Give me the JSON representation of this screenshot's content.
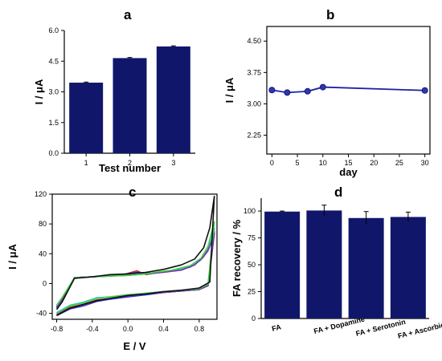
{
  "chart_data": [
    {
      "panel": "a",
      "type": "bar",
      "categories": [
        "1",
        "2",
        "3"
      ],
      "values": [
        3.45,
        4.65,
        5.22
      ],
      "errors": [
        0.03,
        0.03,
        0.03
      ],
      "xlabel": "Test number",
      "ylabel": "I / μA",
      "ylim": [
        0,
        6
      ],
      "yticks": [
        "0.0",
        "1.5",
        "3.0",
        "4.5",
        "6.0"
      ],
      "bar_color": "#10176b"
    },
    {
      "panel": "b",
      "type": "line",
      "x": [
        0,
        3,
        7,
        10,
        30
      ],
      "y": [
        3.33,
        3.27,
        3.3,
        3.4,
        3.32
      ],
      "xlabel": "day",
      "ylabel": "I / μA",
      "xlim": [
        -1,
        31
      ],
      "ylim": [
        1.8,
        4.85
      ],
      "xticks": [
        "0",
        "5",
        "10",
        "15",
        "20",
        "25",
        "30"
      ],
      "yticks": [
        "2.25",
        "3.00",
        "3.75",
        "4.50"
      ],
      "line_color": "#1c22a6",
      "marker_color": "#2f35b4"
    },
    {
      "panel": "c",
      "type": "line",
      "xlabel": "E / V",
      "ylabel": "I / μA",
      "xlim": [
        -0.85,
        1.0
      ],
      "ylim": [
        -48,
        120
      ],
      "xticks": [
        "-0.8",
        "-0.4",
        "0.0",
        "0.4",
        "0.8"
      ],
      "yticks": [
        "-40",
        "0",
        "40",
        "80",
        "120"
      ],
      "series": [
        {
          "color": "#c02626",
          "forward": [
            [
              -0.8,
              -31
            ],
            [
              -0.74,
              -21
            ],
            [
              -0.6,
              8
            ],
            [
              -0.4,
              9
            ],
            [
              -0.2,
              11
            ],
            [
              -0.05,
              12
            ],
            [
              0.1,
              17
            ],
            [
              0.2,
              12
            ],
            [
              0.3,
              14
            ],
            [
              0.5,
              17
            ],
            [
              0.7,
              22
            ],
            [
              0.82,
              32
            ],
            [
              0.9,
              45
            ],
            [
              0.97,
              70
            ]
          ],
          "reverse": [
            [
              0.97,
              70
            ],
            [
              0.9,
              -2
            ],
            [
              0.8,
              -8
            ],
            [
              0.6,
              -10
            ],
            [
              0.4,
              -12
            ],
            [
              0.2,
              -15
            ],
            [
              0.0,
              -17
            ],
            [
              -0.2,
              -20
            ],
            [
              -0.35,
              -22
            ],
            [
              -0.5,
              -28
            ],
            [
              -0.65,
              -32
            ],
            [
              -0.8,
              -41
            ]
          ]
        },
        {
          "color": "#2a2fd8",
          "forward": [
            [
              -0.8,
              -32
            ],
            [
              -0.74,
              -22
            ],
            [
              -0.6,
              8
            ],
            [
              -0.4,
              9
            ],
            [
              -0.2,
              11
            ],
            [
              -0.05,
              12
            ],
            [
              0.1,
              15
            ],
            [
              0.3,
              14
            ],
            [
              0.5,
              17
            ],
            [
              0.7,
              22
            ],
            [
              0.82,
              32
            ],
            [
              0.9,
              44
            ],
            [
              0.97,
              68
            ]
          ],
          "reverse": [
            [
              0.97,
              68
            ],
            [
              0.9,
              -3
            ],
            [
              0.8,
              -8
            ],
            [
              0.6,
              -10
            ],
            [
              0.4,
              -12
            ],
            [
              0.2,
              -15
            ],
            [
              0.0,
              -18
            ],
            [
              -0.2,
              -21
            ],
            [
              -0.35,
              -24
            ],
            [
              -0.5,
              -30
            ],
            [
              -0.65,
              -34
            ],
            [
              -0.8,
              -43
            ]
          ]
        },
        {
          "color": "#33c4d6",
          "forward": [
            [
              -0.8,
              -30
            ],
            [
              -0.74,
              -20
            ],
            [
              -0.6,
              8
            ],
            [
              -0.4,
              9
            ],
            [
              -0.2,
              10
            ],
            [
              0.0,
              11
            ],
            [
              0.2,
              13
            ],
            [
              0.3,
              14
            ],
            [
              0.5,
              17
            ],
            [
              0.7,
              22
            ],
            [
              0.82,
              32
            ],
            [
              0.9,
              45
            ],
            [
              0.97,
              74
            ]
          ],
          "reverse": [
            [
              0.97,
              74
            ],
            [
              0.9,
              -1
            ],
            [
              0.8,
              -7
            ],
            [
              0.6,
              -9
            ],
            [
              0.4,
              -11
            ],
            [
              0.2,
              -13
            ],
            [
              0.0,
              -15
            ],
            [
              -0.2,
              -18
            ],
            [
              -0.35,
              -19
            ],
            [
              -0.5,
              -25
            ],
            [
              -0.65,
              -29
            ],
            [
              -0.8,
              -39
            ]
          ]
        },
        {
          "color": "#7a2fb0",
          "forward": [
            [
              -0.8,
              -33
            ],
            [
              -0.74,
              -22
            ],
            [
              -0.6,
              8
            ],
            [
              -0.4,
              9
            ],
            [
              -0.2,
              10
            ],
            [
              0.0,
              11
            ],
            [
              0.2,
              13
            ],
            [
              0.4,
              15
            ],
            [
              0.6,
              18
            ],
            [
              0.75,
              25
            ],
            [
              0.85,
              36
            ],
            [
              0.92,
              50
            ],
            [
              0.97,
              67
            ]
          ],
          "reverse": [
            [
              0.97,
              67
            ],
            [
              0.9,
              -3
            ],
            [
              0.8,
              -8
            ],
            [
              0.6,
              -10
            ],
            [
              0.4,
              -12
            ],
            [
              0.2,
              -14
            ],
            [
              0.0,
              -17
            ],
            [
              -0.2,
              -20
            ],
            [
              -0.35,
              -23
            ],
            [
              -0.5,
              -29
            ],
            [
              -0.65,
              -33
            ],
            [
              -0.8,
              -42
            ]
          ]
        },
        {
          "color": "#3ed03e",
          "forward": [
            [
              -0.8,
              -29
            ],
            [
              -0.74,
              -19
            ],
            [
              -0.6,
              8
            ],
            [
              -0.4,
              9
            ],
            [
              -0.2,
              10
            ],
            [
              0.0,
              11
            ],
            [
              0.2,
              13
            ],
            [
              0.3,
              15
            ],
            [
              0.5,
              18
            ],
            [
              0.7,
              24
            ],
            [
              0.82,
              34
            ],
            [
              0.9,
              50
            ],
            [
              0.97,
              83
            ]
          ],
          "reverse": [
            [
              0.97,
              83
            ],
            [
              0.9,
              -1
            ],
            [
              0.8,
              -7
            ],
            [
              0.6,
              -9
            ],
            [
              0.4,
              -11
            ],
            [
              0.2,
              -13
            ],
            [
              0.0,
              -15
            ],
            [
              -0.2,
              -18
            ],
            [
              -0.35,
              -20
            ],
            [
              -0.5,
              -26
            ],
            [
              -0.65,
              -30
            ],
            [
              -0.8,
              -40
            ]
          ]
        },
        {
          "color": "#111111",
          "forward": [
            [
              -0.8,
              -35
            ],
            [
              -0.74,
              -25
            ],
            [
              -0.6,
              7
            ],
            [
              -0.4,
              9
            ],
            [
              -0.2,
              12
            ],
            [
              0.0,
              13
            ],
            [
              0.2,
              15
            ],
            [
              0.4,
              19
            ],
            [
              0.6,
              25
            ],
            [
              0.75,
              33
            ],
            [
              0.85,
              48
            ],
            [
              0.92,
              75
            ],
            [
              0.97,
              117
            ]
          ],
          "reverse": [
            [
              0.97,
              117
            ],
            [
              0.92,
              2
            ],
            [
              0.8,
              -6
            ],
            [
              0.6,
              -9
            ],
            [
              0.4,
              -11
            ],
            [
              0.2,
              -14
            ],
            [
              0.0,
              -16
            ],
            [
              -0.2,
              -20
            ],
            [
              -0.35,
              -23
            ],
            [
              -0.5,
              -28
            ],
            [
              -0.65,
              -33
            ],
            [
              -0.8,
              -43
            ]
          ]
        }
      ]
    },
    {
      "panel": "d",
      "type": "bar",
      "categories": [
        "FA",
        "FA + Dopamine",
        "FA + Serotonin",
        "FA + Ascorbic Acid"
      ],
      "values": [
        99.5,
        100.5,
        93.5,
        94.5
      ],
      "errors": [
        0.5,
        5.0,
        6.0,
        4.5
      ],
      "ylabel": "FA recovery / %",
      "ylim": [
        0,
        112
      ],
      "yticks": [
        "0",
        "25",
        "50",
        "75",
        "100"
      ],
      "bar_color": "#10176b"
    }
  ]
}
